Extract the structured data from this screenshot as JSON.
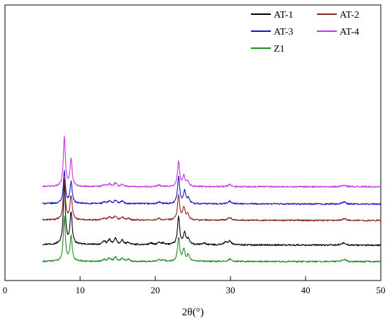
{
  "chart_data": {
    "type": "line",
    "title": "",
    "xlabel": "2θ(°)",
    "ylabel": "",
    "xlim": [
      0,
      50
    ],
    "xticks": [
      "0",
      "10",
      "20",
      "30",
      "40",
      "50"
    ],
    "yticks_shown": false,
    "grid": false,
    "legend_position": "top-right",
    "legend_columns": 2,
    "series": [
      {
        "name": "AT-1",
        "color": "#000000",
        "offset": 0.5,
        "baseline_slope": -0.025,
        "peaks": [
          [
            7.9,
            1.78,
            0.16
          ],
          [
            8.8,
            0.92,
            0.17
          ],
          [
            13.2,
            0.1,
            0.2
          ],
          [
            13.9,
            0.14,
            0.2
          ],
          [
            14.7,
            0.18,
            0.2
          ],
          [
            15.6,
            0.12,
            0.2
          ],
          [
            16.4,
            0.07,
            0.2
          ],
          [
            19.4,
            0.05,
            0.2
          ],
          [
            20.5,
            0.06,
            0.2
          ],
          [
            21.1,
            0.05,
            0.2
          ],
          [
            23.1,
            0.82,
            0.17
          ],
          [
            23.9,
            0.35,
            0.18
          ],
          [
            24.4,
            0.16,
            0.18
          ],
          [
            26.5,
            0.05,
            0.25
          ],
          [
            29.3,
            0.07,
            0.25
          ],
          [
            29.9,
            0.11,
            0.25
          ],
          [
            45.1,
            0.07,
            0.3
          ]
        ]
      },
      {
        "name": "AT-2",
        "color": "#8b2323",
        "offset": 1.22,
        "baseline_slope": -0.015,
        "peaks": [
          [
            7.9,
            1.18,
            0.16
          ],
          [
            8.8,
            0.7,
            0.17
          ],
          [
            13.2,
            0.06,
            0.2
          ],
          [
            13.9,
            0.1,
            0.2
          ],
          [
            14.7,
            0.12,
            0.2
          ],
          [
            15.6,
            0.09,
            0.2
          ],
          [
            16.4,
            0.05,
            0.2
          ],
          [
            20.5,
            0.05,
            0.2
          ],
          [
            23.1,
            0.72,
            0.17
          ],
          [
            23.8,
            0.35,
            0.18
          ],
          [
            24.3,
            0.18,
            0.18
          ],
          [
            29.9,
            0.08,
            0.25
          ],
          [
            45.1,
            0.05,
            0.3
          ]
        ]
      },
      {
        "name": "AT-3",
        "color": "#1414c8",
        "offset": 1.7,
        "baseline_slope": -0.015,
        "peaks": [
          [
            7.9,
            0.95,
            0.16
          ],
          [
            8.8,
            0.62,
            0.17
          ],
          [
            13.2,
            0.05,
            0.2
          ],
          [
            13.9,
            0.08,
            0.2
          ],
          [
            14.7,
            0.1,
            0.2
          ],
          [
            15.6,
            0.08,
            0.2
          ],
          [
            20.5,
            0.05,
            0.2
          ],
          [
            23.1,
            0.78,
            0.17
          ],
          [
            23.9,
            0.38,
            0.18
          ],
          [
            24.4,
            0.15,
            0.18
          ],
          [
            29.9,
            0.08,
            0.25
          ],
          [
            45.1,
            0.06,
            0.3
          ]
        ]
      },
      {
        "name": "AT-4",
        "color": "#c832e6",
        "offset": 2.2,
        "baseline_slope": -0.005,
        "peaks": [
          [
            7.9,
            1.45,
            0.16
          ],
          [
            8.8,
            0.78,
            0.17
          ],
          [
            13.2,
            0.05,
            0.2
          ],
          [
            13.9,
            0.08,
            0.2
          ],
          [
            14.7,
            0.1,
            0.2
          ],
          [
            15.6,
            0.07,
            0.2
          ],
          [
            20.5,
            0.05,
            0.2
          ],
          [
            23.1,
            0.72,
            0.17
          ],
          [
            23.8,
            0.3,
            0.18
          ],
          [
            24.3,
            0.15,
            0.18
          ],
          [
            29.9,
            0.06,
            0.25
          ],
          [
            45.1,
            0.05,
            0.3
          ]
        ]
      },
      {
        "name": "Z1",
        "color": "#1e8c1e",
        "offset": 0.0,
        "baseline_slope": -0.005,
        "peaks": [
          [
            7.9,
            1.3,
            0.16
          ],
          [
            8.8,
            0.72,
            0.17
          ],
          [
            13.2,
            0.07,
            0.2
          ],
          [
            13.9,
            0.1,
            0.2
          ],
          [
            14.7,
            0.13,
            0.2
          ],
          [
            15.6,
            0.09,
            0.2
          ],
          [
            16.4,
            0.06,
            0.2
          ],
          [
            20.5,
            0.06,
            0.2
          ],
          [
            21.1,
            0.05,
            0.2
          ],
          [
            23.1,
            0.7,
            0.17
          ],
          [
            23.8,
            0.35,
            0.18
          ],
          [
            24.4,
            0.2,
            0.18
          ],
          [
            29.9,
            0.07,
            0.25
          ],
          [
            45.1,
            0.06,
            0.3
          ]
        ]
      }
    ]
  }
}
